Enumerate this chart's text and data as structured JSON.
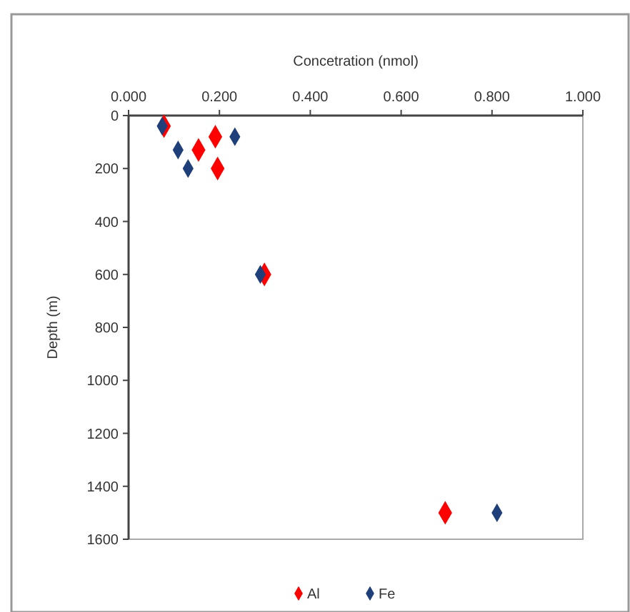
{
  "chart_data": {
    "type": "scatter",
    "xlabel": "Concetration (nmol)",
    "ylabel": "Depth (m)",
    "xlim": [
      0,
      1
    ],
    "xticks": [
      {
        "value": 0,
        "label": "0.000"
      },
      {
        "value": 0.2,
        "label": "0.200"
      },
      {
        "value": 0.4,
        "label": "0.400"
      },
      {
        "value": 0.6,
        "label": "0.600"
      },
      {
        "value": 0.8,
        "label": "0.800"
      },
      {
        "value": 1,
        "label": "1.000"
      }
    ],
    "ylim": [
      1600,
      0
    ],
    "yticks": [
      0,
      200,
      400,
      600,
      800,
      1000,
      1200,
      1400,
      1600
    ],
    "series": [
      {
        "name": "Al",
        "color": "#ff0000",
        "x": [
          0.078,
          0.154,
          0.191,
          0.196,
          0.299,
          0.697
        ],
        "values": [
          40,
          130,
          80,
          200,
          600,
          1500
        ]
      },
      {
        "name": "Fe",
        "color": "#1f3f7a",
        "x": [
          0.074,
          0.109,
          0.234,
          0.131,
          0.29,
          0.811
        ],
        "values": [
          40,
          130,
          80,
          200,
          600,
          1500
        ]
      }
    ],
    "marker": "diamond",
    "grid": false,
    "legend": "bottom"
  }
}
